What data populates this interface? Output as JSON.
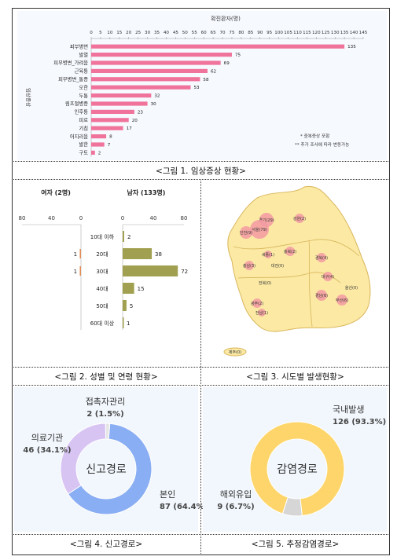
{
  "captions": {
    "fig1": "<그림 1. 임상증상 현황>",
    "fig2": "<그림 2. 성별 및 연령 현황>",
    "fig3": "<그림 3. 시도별 발생현황>",
    "fig4": "<그림 4. 신고경로>",
    "fig5": "<그림 5. 추정감염경로>"
  },
  "chart_data": [
    {
      "type": "bar",
      "orientation": "horizontal",
      "title": "확진환자(명)",
      "ylabel": "임상증상",
      "xlim": [
        0,
        145
      ],
      "xticks": [
        0,
        5,
        10,
        15,
        20,
        25,
        30,
        35,
        40,
        45,
        50,
        55,
        60,
        65,
        70,
        75,
        80,
        85,
        90,
        95,
        100,
        105,
        110,
        115,
        120,
        125,
        130,
        135,
        140,
        145
      ],
      "categories": [
        "피부병변",
        "발열",
        "피부병변_가려움",
        "근육통",
        "피부병변_통증",
        "오한",
        "두통",
        "림프절병증",
        "인후통",
        "피로",
        "기침",
        "어지러움",
        "발한",
        "구토"
      ],
      "values": [
        135,
        75,
        69,
        62,
        58,
        53,
        32,
        30,
        23,
        20,
        17,
        8,
        7,
        2
      ],
      "color": "#f0739b",
      "notes": [
        "* 중복증상 포함",
        "** 추가 조사에 따라 변동가능"
      ]
    },
    {
      "type": "bar",
      "orientation": "horizontal",
      "categories": [
        "10대 이하",
        "20대",
        "30대",
        "40대",
        "50대",
        "60대 이상"
      ],
      "series": [
        {
          "name": "여자 (2명)",
          "values": [
            0,
            1,
            1,
            0,
            0,
            0
          ],
          "color": "#e8762c"
        },
        {
          "name": "남자 (133명)",
          "values": [
            2,
            38,
            72,
            15,
            5,
            1
          ],
          "color": "#a0a050"
        }
      ],
      "female_ticks": [
        80,
        40,
        0
      ],
      "male_ticks": [
        0,
        40,
        80
      ],
      "xlim": [
        0,
        80
      ]
    },
    {
      "type": "map",
      "regions": [
        {
          "label": "경기(29)"
        },
        {
          "label": "강원(2)"
        },
        {
          "label": "서울(79)"
        },
        {
          "label": "인천(9)"
        },
        {
          "label": "충북(2)"
        },
        {
          "label": "세종(1)"
        },
        {
          "label": "충남(3)"
        },
        {
          "label": "대전(0)"
        },
        {
          "label": "경북(4)"
        },
        {
          "label": "전북(0)"
        },
        {
          "label": "대구(4)"
        },
        {
          "label": "경남(6)"
        },
        {
          "label": "울산(0)"
        },
        {
          "label": "부산(6)"
        },
        {
          "label": "광주(2)"
        },
        {
          "label": "전남(1)"
        },
        {
          "label": "제주(0)"
        }
      ]
    },
    {
      "type": "pie",
      "center_label": "신고경로",
      "slices": [
        {
          "label": "본인",
          "value": 87,
          "display": "87 (64.4%)",
          "color": "#8aaef3"
        },
        {
          "label": "의료기관",
          "value": 46,
          "display": "46 (34.1%)",
          "color": "#d7c4f3"
        },
        {
          "label": "접촉자관리",
          "value": 2,
          "display": "2 (1.5%)",
          "color": "#e6e6e6"
        }
      ]
    },
    {
      "type": "pie",
      "center_label": "감염경로",
      "slices": [
        {
          "label": "국내발생",
          "value": 126,
          "display": "126 (93.3%)",
          "color": "#fdd56a"
        },
        {
          "label": "해외유입",
          "value": 9,
          "display": "9 (6.7%)",
          "color": "#d6d6d6"
        }
      ]
    }
  ]
}
